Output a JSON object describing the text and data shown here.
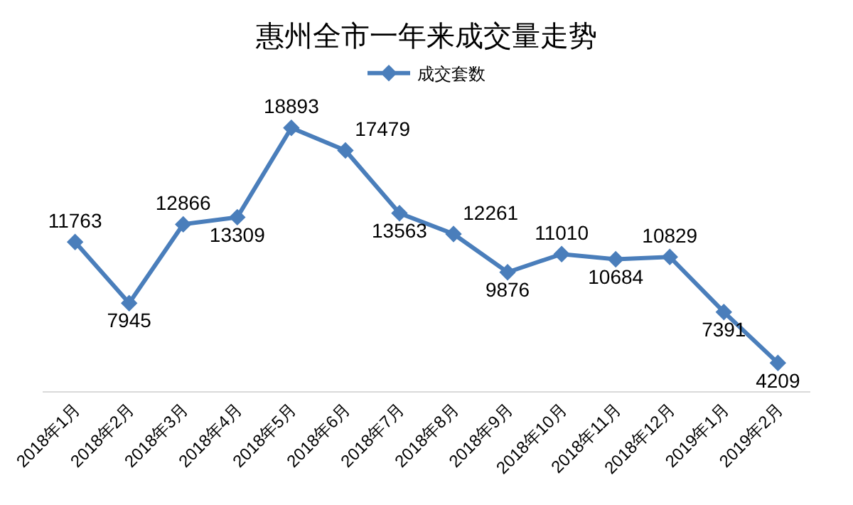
{
  "chart_data": {
    "type": "line",
    "title": "惠州全市一年来成交量走势",
    "categories": [
      "2018年1月",
      "2018年2月",
      "2018年3月",
      "2018年4月",
      "2018年5月",
      "2018年6月",
      "2018年7月",
      "2018年8月",
      "2018年9月",
      "2018年10月",
      "2018年11月",
      "2018年12月",
      "2019年1月",
      "2019年2月"
    ],
    "series": [
      {
        "name": "成交套数",
        "color": "#4a7ebb",
        "values": [
          11763,
          7945,
          12866,
          13309,
          18893,
          17479,
          13563,
          12261,
          9876,
          11010,
          10684,
          10829,
          7391,
          4209
        ]
      }
    ],
    "data_labels": true,
    "legend": "top",
    "marker": "diamond",
    "line_style": "solid",
    "grid": false
  }
}
